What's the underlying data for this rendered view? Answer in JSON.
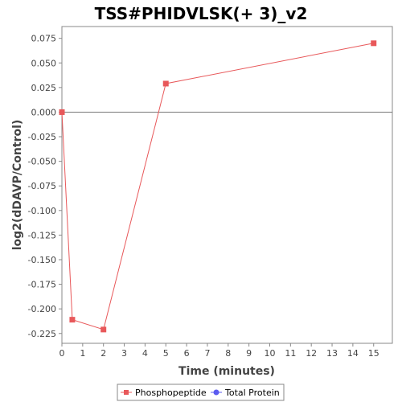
{
  "chart_data": {
    "type": "line",
    "title": "TSS#PHIDVLSK(+ 3)_v2",
    "xlabel": "Time (minutes)",
    "ylabel": "log2(dDAVP/Control)",
    "xlim": [
      0,
      15.9
    ],
    "ylim": [
      -0.235,
      0.087
    ],
    "xticks": [
      "0",
      "1",
      "2",
      "3",
      "4",
      "5",
      "6",
      "7",
      "8",
      "9",
      "10",
      "11",
      "12",
      "13",
      "14",
      "15"
    ],
    "yticks": [
      "0.075",
      "0.050",
      "0.025",
      "0.000",
      "-0.025",
      "-0.050",
      "-0.075",
      "-0.100",
      "-0.125",
      "-0.150",
      "-0.175",
      "-0.200",
      "-0.225"
    ],
    "grid": false,
    "reference_line_y": 0,
    "legend_position": "bottom",
    "series": [
      {
        "name": "Phosphopeptide",
        "color": "#e8585a",
        "marker": "square",
        "x": [
          0,
          0.5,
          2,
          5,
          15
        ],
        "y": [
          0.0,
          -0.211,
          -0.221,
          0.029,
          0.07
        ]
      }
    ],
    "legend": [
      {
        "label": "Phosphopeptide",
        "color": "#e8585a",
        "marker": "square"
      },
      {
        "label": "Total Protein",
        "color": "#5b5bf0",
        "marker": "circle"
      }
    ]
  }
}
